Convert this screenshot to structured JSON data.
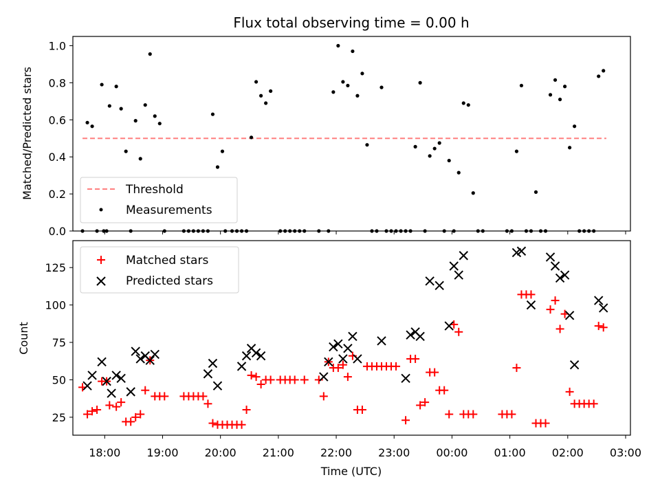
{
  "chart_data": [
    {
      "type": "scatter",
      "title": "Flux total observing time = 0.00 h",
      "xlabel": "",
      "ylabel": "Matched/Predicted stars",
      "ylim": [
        0,
        1.05
      ],
      "xlim": [
        "17:27",
        "03:05"
      ],
      "yticks": [
        "0.0",
        "0.2",
        "0.4",
        "0.6",
        "0.8",
        "1.0"
      ],
      "threshold": {
        "name": "Threshold",
        "value": 0.5,
        "color": "#ff7f7f",
        "style": "dashed",
        "x_range": [
          "17:37",
          "02:40"
        ]
      },
      "legend": {
        "placement": "lower-left",
        "entries": [
          "Threshold",
          "Measurements"
        ]
      },
      "series": [
        {
          "name": "Measurements",
          "color": "#000000",
          "marker": "dot",
          "points": [
            [
              "17:37",
              0.0
            ],
            [
              "17:42",
              0.585
            ],
            [
              "17:47",
              0.565
            ],
            [
              "17:52",
              0.0
            ],
            [
              "17:57",
              0.79
            ],
            [
              "17:59",
              0.0
            ],
            [
              "18:02",
              0.0
            ],
            [
              "18:05",
              0.675
            ],
            [
              "18:12",
              0.78
            ],
            [
              "18:17",
              0.66
            ],
            [
              "18:22",
              0.43
            ],
            [
              "18:27",
              0.0
            ],
            [
              "18:32",
              0.595
            ],
            [
              "18:37",
              0.39
            ],
            [
              "18:42",
              0.68
            ],
            [
              "18:47",
              0.955
            ],
            [
              "18:52",
              0.62
            ],
            [
              "18:57",
              0.58
            ],
            [
              "19:02",
              0.0
            ],
            [
              "19:22",
              0.0
            ],
            [
              "19:27",
              0.0
            ],
            [
              "19:32",
              0.0
            ],
            [
              "19:37",
              0.0
            ],
            [
              "19:42",
              0.0
            ],
            [
              "19:47",
              0.0
            ],
            [
              "19:52",
              0.63
            ],
            [
              "19:57",
              0.345
            ],
            [
              "20:02",
              0.43
            ],
            [
              "20:05",
              0.0
            ],
            [
              "20:12",
              0.0
            ],
            [
              "20:17",
              0.0
            ],
            [
              "20:22",
              0.0
            ],
            [
              "20:27",
              0.0
            ],
            [
              "20:32",
              0.505
            ],
            [
              "20:37",
              0.805
            ],
            [
              "20:42",
              0.73
            ],
            [
              "20:47",
              0.69
            ],
            [
              "20:52",
              0.755
            ],
            [
              "21:02",
              0.0
            ],
            [
              "21:07",
              0.0
            ],
            [
              "21:12",
              0.0
            ],
            [
              "21:17",
              0.0
            ],
            [
              "21:22",
              0.0
            ],
            [
              "21:27",
              0.0
            ],
            [
              "21:42",
              0.0
            ],
            [
              "21:52",
              0.0
            ],
            [
              "21:57",
              0.75
            ],
            [
              "22:02",
              1.0
            ],
            [
              "22:07",
              0.805
            ],
            [
              "22:12",
              0.785
            ],
            [
              "22:17",
              0.97
            ],
            [
              "22:22",
              0.73
            ],
            [
              "22:27",
              0.85
            ],
            [
              "22:32",
              0.465
            ],
            [
              "22:37",
              0.0
            ],
            [
              "22:42",
              0.0
            ],
            [
              "22:47",
              0.775
            ],
            [
              "22:52",
              0.0
            ],
            [
              "22:57",
              0.0
            ],
            [
              "23:02",
              0.0
            ],
            [
              "23:07",
              0.0
            ],
            [
              "23:12",
              0.0
            ],
            [
              "23:17",
              0.0
            ],
            [
              "23:22",
              0.455
            ],
            [
              "23:27",
              0.8
            ],
            [
              "23:32",
              0.0
            ],
            [
              "23:37",
              0.405
            ],
            [
              "23:42",
              0.445
            ],
            [
              "23:47",
              0.475
            ],
            [
              "23:52",
              0.0
            ],
            [
              "23:57",
              0.38
            ],
            [
              "24:02",
              0.0
            ],
            [
              "24:07",
              0.315
            ],
            [
              "24:12",
              0.69
            ],
            [
              "24:17",
              0.68
            ],
            [
              "24:22",
              0.205
            ],
            [
              "24:27",
              0.0
            ],
            [
              "24:32",
              0.0
            ],
            [
              "24:57",
              0.0
            ],
            [
              "25:02",
              0.0
            ],
            [
              "25:07",
              0.43
            ],
            [
              "25:12",
              0.785
            ],
            [
              "25:17",
              0.0
            ],
            [
              "25:22",
              0.0
            ],
            [
              "25:27",
              0.21
            ],
            [
              "25:32",
              0.0
            ],
            [
              "25:37",
              0.0
            ],
            [
              "25:42",
              0.735
            ],
            [
              "25:47",
              0.815
            ],
            [
              "25:52",
              0.71
            ],
            [
              "25:57",
              0.78
            ],
            [
              "26:02",
              0.45
            ],
            [
              "26:07",
              0.565
            ],
            [
              "26:12",
              0.0
            ],
            [
              "26:17",
              0.0
            ],
            [
              "26:22",
              0.0
            ],
            [
              "26:27",
              0.0
            ],
            [
              "26:32",
              0.835
            ],
            [
              "26:37",
              0.865
            ]
          ]
        }
      ]
    },
    {
      "type": "scatter",
      "title": "",
      "xlabel": "Time (UTC)",
      "ylabel": "Count",
      "ylim": [
        13,
        143
      ],
      "xlim": [
        "17:27",
        "03:05"
      ],
      "xticks": [
        "18:00",
        "19:00",
        "20:00",
        "21:00",
        "22:00",
        "23:00",
        "00:00",
        "01:00",
        "02:00",
        "03:00"
      ],
      "yticks": [
        "25",
        "50",
        "75",
        "100",
        "125"
      ],
      "legend": {
        "placement": "upper-left",
        "entries": [
          "Matched stars",
          "Predicted stars"
        ]
      },
      "series": [
        {
          "name": "Matched stars",
          "color": "#ff0000",
          "marker": "plus",
          "points": [
            [
              "17:37",
              45
            ],
            [
              "17:42",
              27
            ],
            [
              "17:47",
              29
            ],
            [
              "17:52",
              30
            ],
            [
              "17:57",
              49
            ],
            [
              "18:02",
              49
            ],
            [
              "18:05",
              33
            ],
            [
              "18:12",
              32
            ],
            [
              "18:17",
              35
            ],
            [
              "18:22",
              22
            ],
            [
              "18:27",
              22
            ],
            [
              "18:32",
              25
            ],
            [
              "18:37",
              27
            ],
            [
              "18:42",
              43
            ],
            [
              "18:47",
              63
            ],
            [
              "18:52",
              39
            ],
            [
              "18:57",
              39
            ],
            [
              "19:02",
              39
            ],
            [
              "19:22",
              39
            ],
            [
              "19:27",
              39
            ],
            [
              "19:32",
              39
            ],
            [
              "19:37",
              39
            ],
            [
              "19:42",
              39
            ],
            [
              "19:47",
              34
            ],
            [
              "19:52",
              21
            ],
            [
              "19:57",
              20
            ],
            [
              "20:02",
              20
            ],
            [
              "20:07",
              20
            ],
            [
              "20:12",
              20
            ],
            [
              "20:17",
              20
            ],
            [
              "20:22",
              20
            ],
            [
              "20:27",
              30
            ],
            [
              "20:32",
              53
            ],
            [
              "20:37",
              52
            ],
            [
              "20:42",
              47
            ],
            [
              "20:47",
              50
            ],
            [
              "20:52",
              50
            ],
            [
              "21:02",
              50
            ],
            [
              "21:07",
              50
            ],
            [
              "21:12",
              50
            ],
            [
              "21:17",
              50
            ],
            [
              "21:27",
              50
            ],
            [
              "21:42",
              50
            ],
            [
              "21:47",
              39
            ],
            [
              "21:52",
              62
            ],
            [
              "21:57",
              58
            ],
            [
              "22:02",
              58
            ],
            [
              "22:07",
              60
            ],
            [
              "22:12",
              52
            ],
            [
              "22:17",
              66
            ],
            [
              "22:22",
              30
            ],
            [
              "22:27",
              30
            ],
            [
              "22:32",
              59
            ],
            [
              "22:37",
              59
            ],
            [
              "22:42",
              59
            ],
            [
              "22:47",
              59
            ],
            [
              "22:52",
              59
            ],
            [
              "22:57",
              59
            ],
            [
              "23:02",
              59
            ],
            [
              "23:12",
              23
            ],
            [
              "23:17",
              64
            ],
            [
              "23:22",
              64
            ],
            [
              "23:27",
              33
            ],
            [
              "23:32",
              35
            ],
            [
              "23:37",
              55
            ],
            [
              "23:42",
              55
            ],
            [
              "23:47",
              43
            ],
            [
              "23:52",
              43
            ],
            [
              "23:57",
              27
            ],
            [
              "24:02",
              87
            ],
            [
              "24:07",
              82
            ],
            [
              "24:12",
              27
            ],
            [
              "24:17",
              27
            ],
            [
              "24:22",
              27
            ],
            [
              "24:52",
              27
            ],
            [
              "24:57",
              27
            ],
            [
              "25:02",
              27
            ],
            [
              "25:07",
              58
            ],
            [
              "25:12",
              107
            ],
            [
              "25:17",
              107
            ],
            [
              "25:22",
              107
            ],
            [
              "25:27",
              21
            ],
            [
              "25:32",
              21
            ],
            [
              "25:37",
              21
            ],
            [
              "25:42",
              97
            ],
            [
              "25:47",
              103
            ],
            [
              "25:52",
              84
            ],
            [
              "25:57",
              94
            ],
            [
              "26:02",
              42
            ],
            [
              "26:07",
              34
            ],
            [
              "26:12",
              34
            ],
            [
              "26:17",
              34
            ],
            [
              "26:22",
              34
            ],
            [
              "26:27",
              34
            ],
            [
              "26:32",
              86
            ],
            [
              "26:37",
              85
            ]
          ]
        },
        {
          "name": "Predicted stars",
          "color": "#000000",
          "marker": "x",
          "points": [
            [
              "17:42",
              46
            ],
            [
              "17:47",
              53
            ],
            [
              "17:57",
              62
            ],
            [
              "18:02",
              49
            ],
            [
              "18:07",
              41
            ],
            [
              "18:12",
              53
            ],
            [
              "18:17",
              51
            ],
            [
              "18:27",
              42
            ],
            [
              "18:32",
              69
            ],
            [
              "18:37",
              64
            ],
            [
              "18:42",
              66
            ],
            [
              "18:47",
              63
            ],
            [
              "18:52",
              67
            ],
            [
              "19:47",
              54
            ],
            [
              "19:52",
              61
            ],
            [
              "19:57",
              46
            ],
            [
              "20:22",
              59
            ],
            [
              "20:27",
              66
            ],
            [
              "20:32",
              71
            ],
            [
              "20:37",
              68
            ],
            [
              "20:42",
              66
            ],
            [
              "21:47",
              52
            ],
            [
              "21:52",
              62
            ],
            [
              "21:57",
              72
            ],
            [
              "22:02",
              74
            ],
            [
              "22:07",
              64
            ],
            [
              "22:12",
              71
            ],
            [
              "22:17",
              79
            ],
            [
              "22:22",
              64
            ],
            [
              "22:47",
              76
            ],
            [
              "23:12",
              51
            ],
            [
              "23:17",
              80
            ],
            [
              "23:22",
              82
            ],
            [
              "23:27",
              79
            ],
            [
              "23:37",
              116
            ],
            [
              "23:47",
              113
            ],
            [
              "23:57",
              86
            ],
            [
              "24:02",
              126
            ],
            [
              "24:07",
              120
            ],
            [
              "24:12",
              133
            ],
            [
              "25:07",
              135
            ],
            [
              "25:12",
              136
            ],
            [
              "25:22",
              100
            ],
            [
              "25:42",
              132
            ],
            [
              "25:47",
              126
            ],
            [
              "25:52",
              118
            ],
            [
              "25:57",
              120
            ],
            [
              "26:02",
              93
            ],
            [
              "26:07",
              60
            ],
            [
              "26:32",
              103
            ],
            [
              "26:37",
              98
            ]
          ]
        }
      ]
    }
  ]
}
